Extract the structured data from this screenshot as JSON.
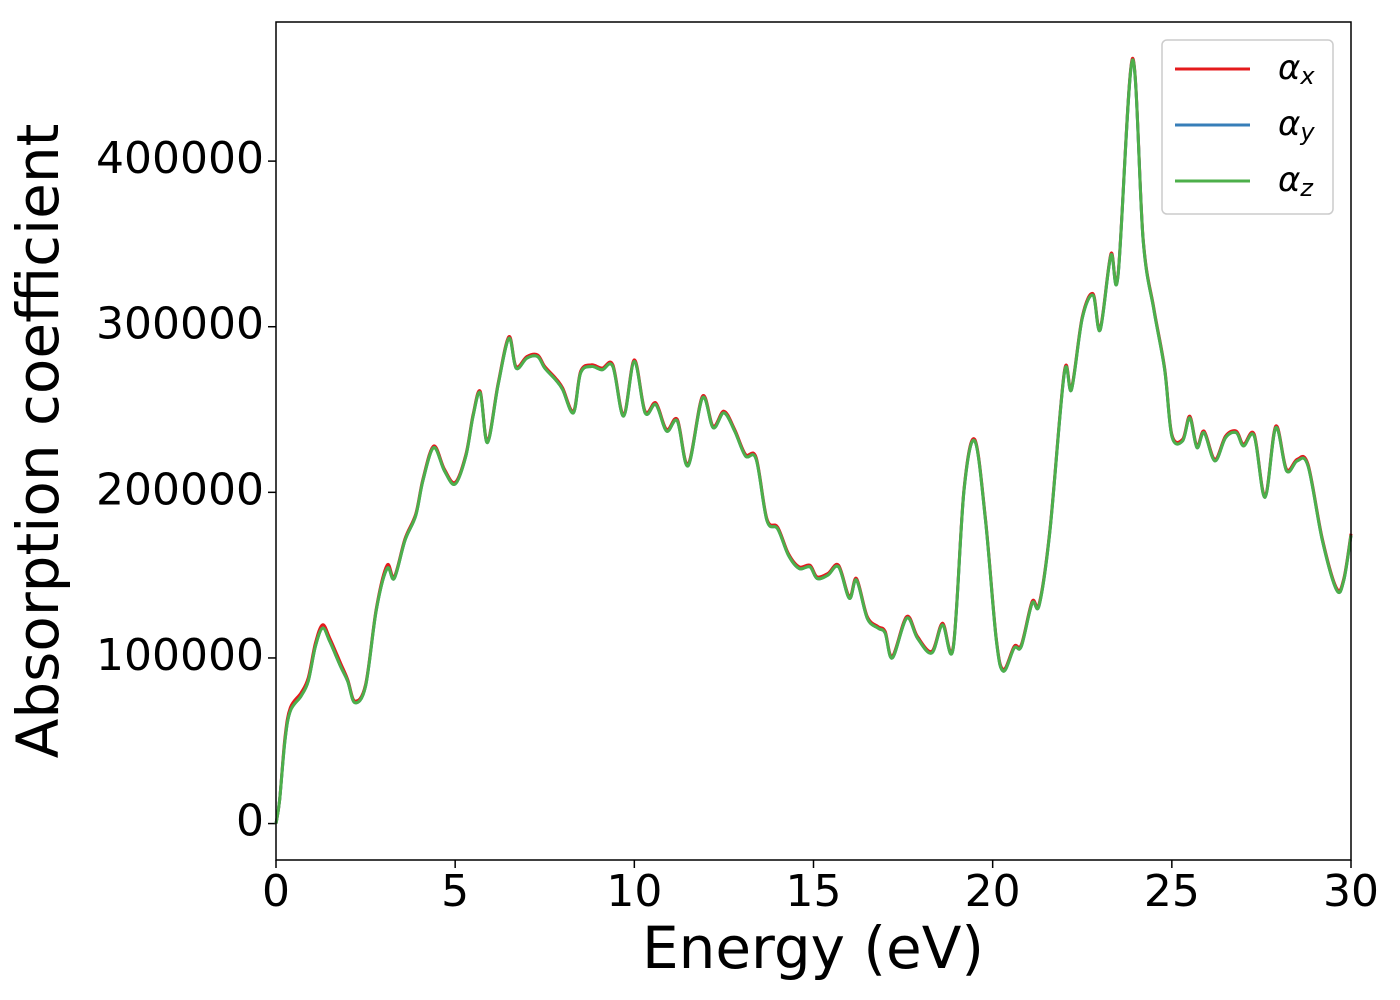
{
  "chart_data": {
    "type": "line",
    "xlabel": "Energy (eV)",
    "ylabel": "Absorption coefficient",
    "x": [
      0,
      0.1,
      0.25,
      0.4,
      0.7,
      0.9,
      1.1,
      1.3,
      1.5,
      1.8,
      2.0,
      2.2,
      2.5,
      2.8,
      3.1,
      3.3,
      3.6,
      3.9,
      4.1,
      4.4,
      4.7,
      5.0,
      5.3,
      5.5,
      5.7,
      5.9,
      6.2,
      6.5,
      6.7,
      7.0,
      7.3,
      7.5,
      7.8,
      8.0,
      8.3,
      8.5,
      8.8,
      9.1,
      9.4,
      9.7,
      10.0,
      10.3,
      10.6,
      10.9,
      11.2,
      11.5,
      11.9,
      12.2,
      12.5,
      12.8,
      13.1,
      13.4,
      13.7,
      14.0,
      14.3,
      14.6,
      14.9,
      15.1,
      15.4,
      15.7,
      16.0,
      16.2,
      16.5,
      16.8,
      17.0,
      17.2,
      17.6,
      17.9,
      18.3,
      18.6,
      18.9,
      19.2,
      19.5,
      19.8,
      20.1,
      20.3,
      20.6,
      20.8,
      21.1,
      21.3,
      21.6,
      22.0,
      22.2,
      22.5,
      22.8,
      23.0,
      23.3,
      23.5,
      23.9,
      24.2,
      24.5,
      24.8,
      25.0,
      25.3,
      25.5,
      25.7,
      25.9,
      26.2,
      26.5,
      26.8,
      27.0,
      27.3,
      27.6,
      27.9,
      28.2,
      28.5,
      28.8,
      29.2,
      29.6,
      29.8,
      30.0
    ],
    "series": [
      {
        "name": "αx",
        "color": "#e41a1c",
        "values": [
          0,
          14000,
          52000,
          70000,
          79000,
          88000,
          109000,
          120000,
          112000,
          97000,
          87000,
          74000,
          84000,
          130000,
          156000,
          149000,
          172000,
          187000,
          208000,
          228000,
          214000,
          206000,
          223000,
          247000,
          261000,
          231000,
          266000,
          294000,
          276000,
          282000,
          283000,
          276000,
          269000,
          263000,
          249000,
          273000,
          277000,
          275000,
          277000,
          247000,
          280000,
          249000,
          254000,
          238000,
          244000,
          217000,
          258000,
          240000,
          249000,
          238000,
          223000,
          221000,
          184000,
          179000,
          163000,
          155000,
          156000,
          149000,
          151000,
          156000,
          137000,
          148000,
          125000,
          119000,
          116000,
          101000,
          125000,
          113000,
          104000,
          121000,
          107000,
          202000,
          232000,
          184000,
          112000,
          93000,
          107000,
          108000,
          134000,
          133000,
          178000,
          273000,
          263000,
          306000,
          320000,
          299000,
          344000,
          332000,
          462000,
          353000,
          311000,
          275000,
          235000,
          232000,
          246000,
          228000,
          237000,
          220000,
          234000,
          237000,
          229000,
          235000,
          198000,
          240000,
          214000,
          220000,
          217000,
          172000,
          142000,
          148000,
          175000
        ]
      },
      {
        "name": "αy",
        "color": "#377eb8",
        "values": [
          0,
          14000,
          50000,
          68000,
          77000,
          86000,
          107000,
          118000,
          110000,
          95000,
          86000,
          73000,
          83000,
          129000,
          154000,
          148000,
          171000,
          186000,
          207000,
          227000,
          213000,
          205000,
          222000,
          246000,
          260000,
          230000,
          265000,
          293000,
          275000,
          281000,
          282000,
          275000,
          268000,
          262000,
          248000,
          272000,
          276000,
          274000,
          276000,
          246000,
          279000,
          248000,
          253000,
          237000,
          243000,
          216000,
          257000,
          239000,
          248000,
          237000,
          222000,
          220000,
          183000,
          178000,
          162000,
          154000,
          155000,
          148000,
          150000,
          155000,
          136000,
          147000,
          124000,
          118000,
          115000,
          100000,
          124000,
          112000,
          103000,
          120000,
          106000,
          201000,
          231000,
          183000,
          111000,
          92000,
          106000,
          107000,
          133000,
          132000,
          177000,
          272000,
          262000,
          305000,
          319000,
          298000,
          343000,
          331000,
          461000,
          352000,
          310000,
          274000,
          234000,
          231000,
          245000,
          227000,
          236000,
          219000,
          233000,
          236000,
          228000,
          234000,
          197000,
          239000,
          213000,
          219000,
          216000,
          171000,
          141000,
          147000,
          174000
        ]
      },
      {
        "name": "αz",
        "color": "#4daf4a",
        "values": [
          0,
          14000,
          50000,
          68000,
          77000,
          86000,
          107000,
          118000,
          110000,
          95000,
          86000,
          73000,
          83000,
          129000,
          154000,
          148000,
          171000,
          186000,
          207000,
          227000,
          213000,
          205000,
          222000,
          246000,
          260000,
          230000,
          265000,
          293000,
          275000,
          281000,
          282000,
          275000,
          268000,
          262000,
          248000,
          272000,
          276000,
          274000,
          276000,
          246000,
          279000,
          248000,
          253000,
          237000,
          243000,
          216000,
          257000,
          239000,
          248000,
          237000,
          222000,
          220000,
          183000,
          178000,
          162000,
          154000,
          155000,
          148000,
          150000,
          155000,
          136000,
          147000,
          124000,
          118000,
          115000,
          100000,
          124000,
          112000,
          103000,
          120000,
          106000,
          201000,
          231000,
          183000,
          111000,
          92000,
          106000,
          107000,
          133000,
          132000,
          177000,
          272000,
          262000,
          305000,
          319000,
          298000,
          343000,
          331000,
          461000,
          352000,
          310000,
          274000,
          234000,
          231000,
          245000,
          227000,
          236000,
          219000,
          233000,
          236000,
          228000,
          234000,
          197000,
          239000,
          213000,
          219000,
          216000,
          171000,
          141000,
          147000,
          174000
        ]
      }
    ],
    "xlim": [
      0,
      30
    ],
    "xticks": [
      0,
      5,
      10,
      15,
      20,
      25,
      30
    ],
    "ylim": [
      -22000,
      484000
    ],
    "yticks": [
      0,
      100000,
      200000,
      300000,
      400000
    ],
    "grid": false,
    "legend": "upper right"
  }
}
